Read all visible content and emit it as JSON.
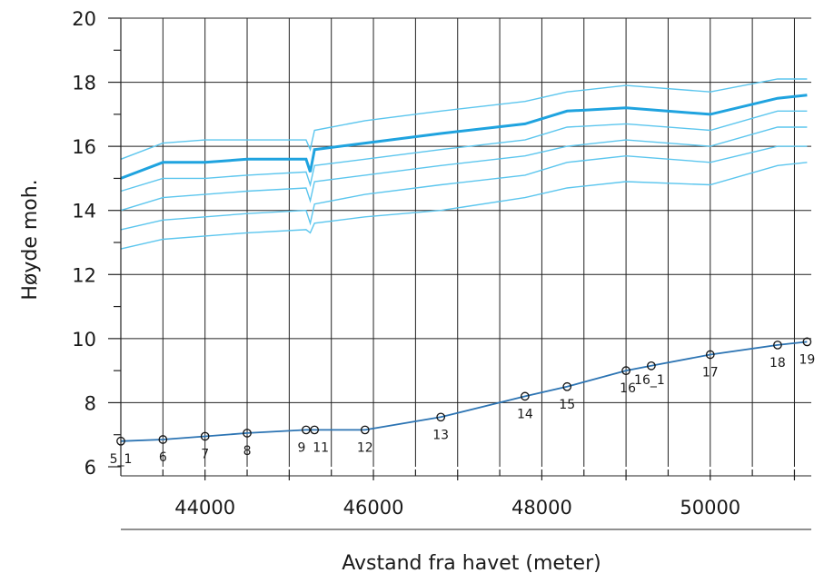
{
  "chart_data": {
    "type": "line",
    "xlabel": "Avstand fra havet (meter)",
    "ylabel": "Høyde moh.",
    "xlim": [
      43000,
      51200
    ],
    "ylim": [
      6,
      20
    ],
    "x_ticks": [
      44000,
      46000,
      48000,
      50000
    ],
    "x_tick_labels": [
      "44000",
      "46000",
      "48000",
      "50000"
    ],
    "y_ticks": [
      6,
      8,
      10,
      12,
      14,
      16,
      18,
      20
    ],
    "y_tick_labels": [
      "6",
      "8",
      "10",
      "12",
      "14",
      "16",
      "18",
      "20"
    ],
    "grid": true,
    "colors": {
      "main": "#1fa3df",
      "band": "#5cc6ee",
      "terrain": "#2c74b3",
      "grid": "#222222"
    },
    "cross_sections": [
      {
        "label": "5_1",
        "x": 43000,
        "y": 6.8
      },
      {
        "label": "6",
        "x": 43500,
        "y": 6.85
      },
      {
        "label": "7",
        "x": 44000,
        "y": 6.95
      },
      {
        "label": "8",
        "x": 44500,
        "y": 7.05
      },
      {
        "label": "9",
        "x": 45200,
        "y": 7.15
      },
      {
        "label": "11",
        "x": 45300,
        "y": 7.15
      },
      {
        "label": "12",
        "x": 45900,
        "y": 7.15
      },
      {
        "label": "13",
        "x": 46800,
        "y": 7.55
      },
      {
        "label": "14",
        "x": 47800,
        "y": 8.2
      },
      {
        "label": "15",
        "x": 48300,
        "y": 8.5
      },
      {
        "label": "16",
        "x": 49000,
        "y": 9.0
      },
      {
        "label": "16_1",
        "x": 49300,
        "y": 9.15
      },
      {
        "label": "17",
        "x": 50000,
        "y": 9.5
      },
      {
        "label": "18",
        "x": 50800,
        "y": 9.8
      },
      {
        "label": "19",
        "x": 51150,
        "y": 9.9
      }
    ],
    "water_profiles": {
      "x": [
        43000,
        43500,
        44000,
        44500,
        45200,
        45250,
        45300,
        45900,
        46800,
        47800,
        48300,
        49000,
        50000,
        50800,
        51150
      ],
      "main": [
        15.0,
        15.5,
        15.5,
        15.6,
        15.6,
        15.2,
        15.9,
        16.1,
        16.4,
        16.7,
        17.1,
        17.2,
        17.0,
        17.5,
        17.6
      ],
      "bands": [
        [
          15.6,
          16.1,
          16.2,
          16.2,
          16.2,
          15.9,
          16.5,
          16.8,
          17.1,
          17.4,
          17.7,
          17.9,
          17.7,
          18.1,
          18.1
        ],
        [
          14.6,
          15.0,
          15.0,
          15.1,
          15.2,
          14.8,
          15.4,
          15.6,
          15.9,
          16.2,
          16.6,
          16.7,
          16.5,
          17.1,
          17.1
        ],
        [
          14.0,
          14.4,
          14.5,
          14.6,
          14.7,
          14.3,
          14.9,
          15.1,
          15.4,
          15.7,
          16.0,
          16.2,
          16.0,
          16.6,
          16.6
        ],
        [
          13.4,
          13.7,
          13.8,
          13.9,
          14.0,
          13.6,
          14.2,
          14.5,
          14.8,
          15.1,
          15.5,
          15.7,
          15.5,
          16.0,
          16.0
        ],
        [
          12.8,
          13.1,
          13.2,
          13.3,
          13.4,
          13.3,
          13.6,
          13.8,
          14.0,
          14.4,
          14.7,
          14.9,
          14.8,
          15.4,
          15.5
        ]
      ]
    }
  }
}
